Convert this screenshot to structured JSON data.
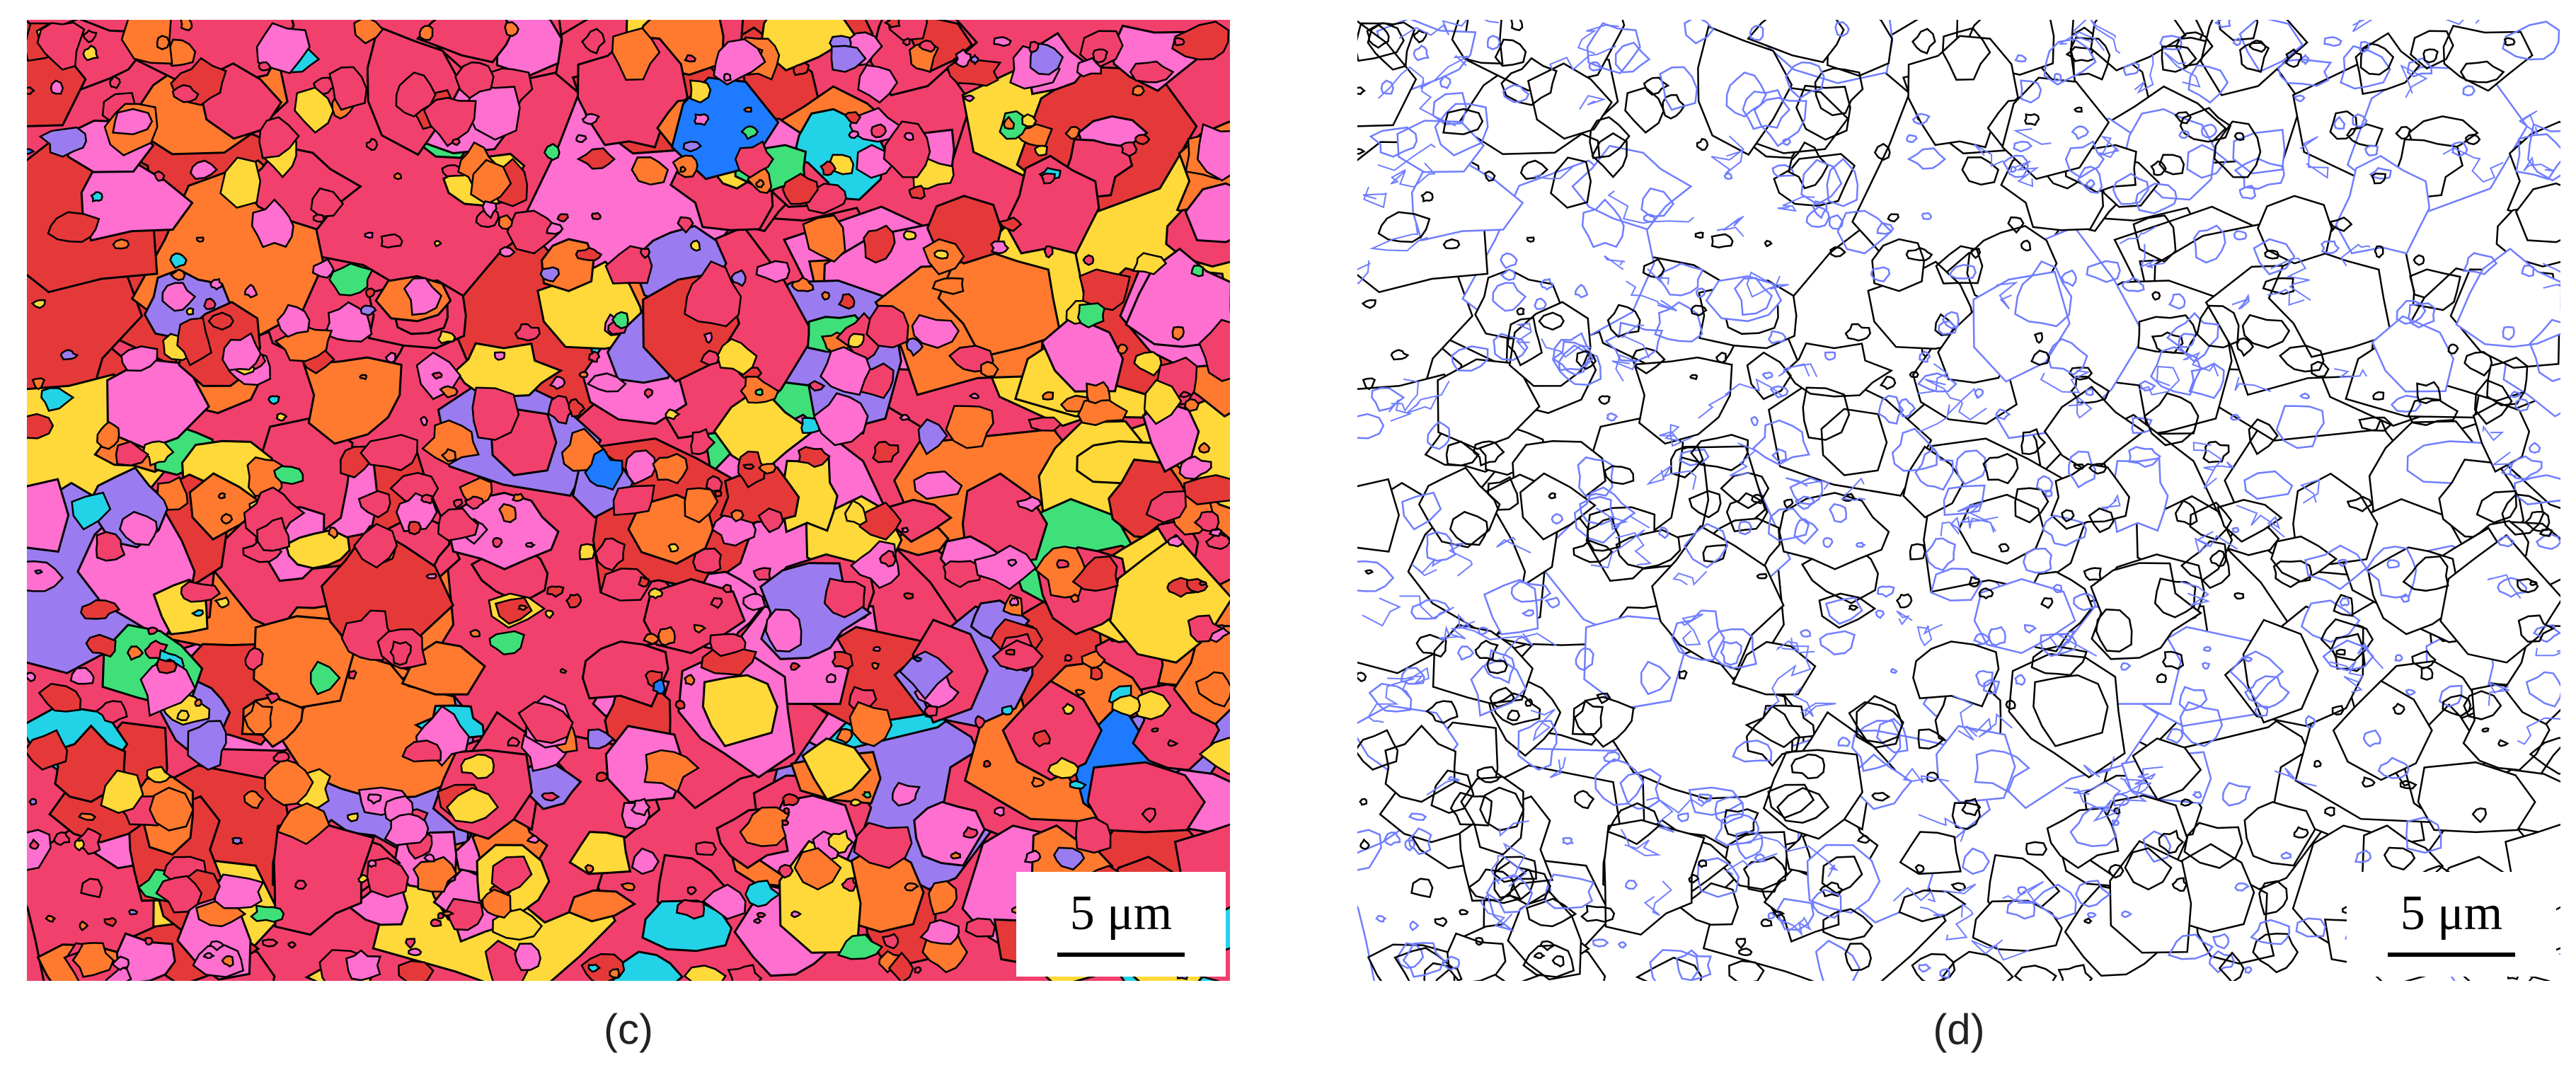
{
  "figure": {
    "panels": [
      {
        "id": "c",
        "caption": "(c)",
        "scale_bar_label": "5 μm",
        "description_colors": [
          "#f2406d",
          "#ff6fd0",
          "#ff7a2e",
          "#ffd93a",
          "#e53939",
          "#9b7cf0",
          "#3fe07a",
          "#22d3e8",
          "#1e7bff"
        ],
        "boundary_color": "#000000"
      },
      {
        "id": "d",
        "caption": "(d)",
        "scale_bar_label": "5 μm",
        "high_angle_boundary_color": "#000000",
        "low_angle_boundary_color": "#6f7dff"
      }
    ]
  }
}
